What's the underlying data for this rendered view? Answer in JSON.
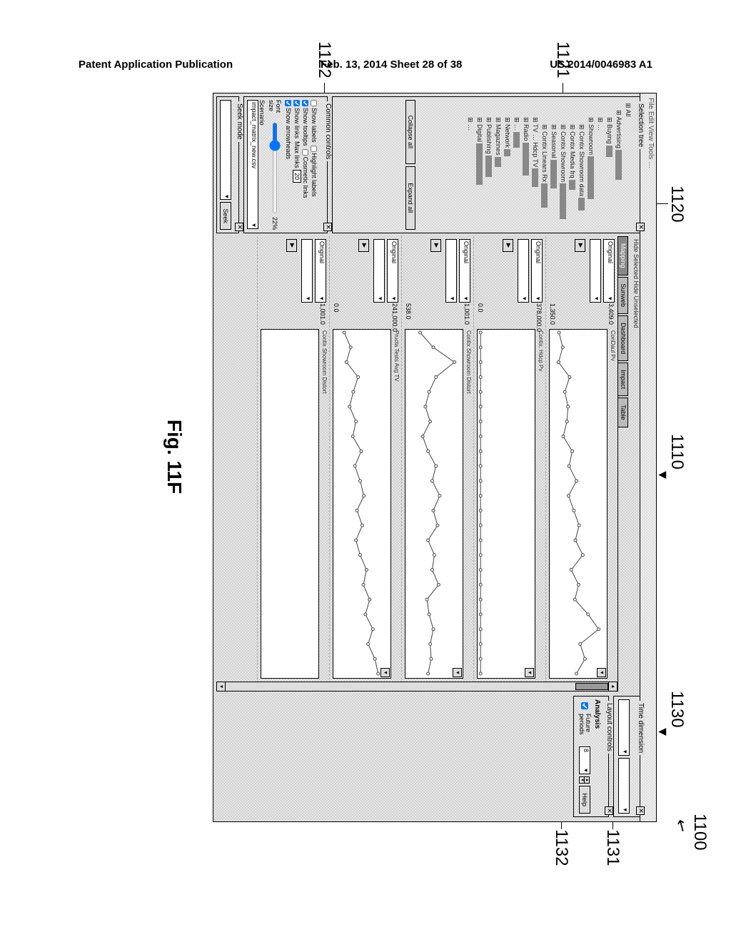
{
  "header": {
    "left": "Patent Application Publication",
    "center": "Feb. 13, 2014  Sheet 28 of 38",
    "right": "US 2014/0046983 A1"
  },
  "figure_label": "Fig. 11F",
  "callouts": {
    "c1100": "1100",
    "c1110": "1110",
    "c1120": "1120",
    "c1121": "1121",
    "c1122": "1122",
    "c1130": "1130",
    "c1131": "1131",
    "c1132": "1132"
  },
  "menubar": "File  Edit  View  Tools  …",
  "selection_tree": {
    "title": "Selection tree",
    "items": [
      {
        "indent": 0,
        "label": "All",
        "bar": 0
      },
      {
        "indent": 1,
        "label": "Advertising",
        "bar": 42
      },
      {
        "indent": 2,
        "label": "Buying",
        "bar": 16
      },
      {
        "indent": 2,
        "label": "…",
        "bar": 0
      },
      {
        "indent": 2,
        "label": "Showroom",
        "bar": 60
      },
      {
        "indent": 3,
        "label": "Contix Showroom data",
        "bar": 18
      },
      {
        "indent": 3,
        "label": "Contix Media frq",
        "bar": 14
      },
      {
        "indent": 3,
        "label": "Contix Showroom",
        "bar": 50
      },
      {
        "indent": 3,
        "label": "Seasonal",
        "bar": 40
      },
      {
        "indent": 3,
        "label": "Contix Linears Rx",
        "bar": 34
      },
      {
        "indent": 2,
        "label": "TV  …  Hdcp TV",
        "bar": 26
      },
      {
        "indent": 2,
        "label": "Radio",
        "bar": 46
      },
      {
        "indent": 2,
        "label": "…",
        "bar": 22
      },
      {
        "indent": 2,
        "label": "Network",
        "bar": 10
      },
      {
        "indent": 2,
        "label": "Magazines",
        "bar": 14
      },
      {
        "indent": 2,
        "label": "Publishing",
        "bar": 30
      },
      {
        "indent": 2,
        "label": "Digital",
        "bar": 58
      },
      {
        "indent": 2,
        "label": "…",
        "bar": 0
      }
    ],
    "collapse": "Collapse all",
    "expand": "Expand all"
  },
  "common_controls": {
    "title": "Common controls",
    "show_labels": "Show labels",
    "highlight_labels": "Highlight labels",
    "show_tooltips": "Show tooltips",
    "cosmetic_links": "Cosmetic links",
    "show_links": "Show links",
    "max_links_label": "Max links",
    "max_links_val": "20",
    "show_arrowheads": "Show arrowheads",
    "font_size_label": "Font size",
    "font_size_val": "22%",
    "scenario_label": "Scenario",
    "scenario_val": "impact_matrix_new.csv"
  },
  "seek": {
    "title": "Seek mode",
    "btn": "Seek"
  },
  "main_toolbar": "Hide Selected     Hide Unselected",
  "tabs": [
    "Mapping",
    "Sunweb",
    "Dashboard",
    "Impact",
    "Table"
  ],
  "charts": [
    {
      "title": "ConDaul Pv",
      "ymax": "3,409.0",
      "ymin": "1,350.0",
      "ctrl": "Original",
      "series": [
        15,
        22,
        14,
        35,
        26,
        32,
        30,
        23,
        40,
        34,
        48,
        33,
        43,
        53,
        46,
        60,
        38,
        52,
        45,
        70,
        90,
        55,
        64,
        48
      ],
      "yscale": 100
    },
    {
      "title": "Contix. Hdcp Pv",
      "ymax": "378,000.0",
      "ymin": "0.0",
      "ctrl": "Original",
      "series": [
        3,
        3,
        3,
        3,
        3,
        3,
        3,
        3,
        3,
        3,
        3,
        3,
        3,
        3,
        3,
        3,
        3,
        3,
        3,
        3,
        3,
        3,
        3,
        3
      ],
      "yscale": 100
    },
    {
      "title": "Contix Showroom Distort",
      "ymax": "1,001.0",
      "ymin": "538.0",
      "ctrl": "Original",
      "series": [
        25,
        50,
        90,
        55,
        42,
        35,
        44,
        30,
        40,
        55,
        48,
        62,
        50,
        58,
        40,
        52,
        48,
        60,
        38,
        42,
        50,
        44,
        46,
        40
      ],
      "yscale": 100
    },
    {
      "title": "Pructa Tests  Avg TV",
      "ymax": "241,000.0",
      "ymin": "0.0",
      "ctrl": "Original",
      "series": [
        18,
        30,
        22,
        44,
        35,
        28,
        40,
        34,
        50,
        38,
        48,
        55,
        42,
        52,
        40,
        48,
        60,
        54,
        66,
        58,
        72,
        63,
        76,
        82
      ],
      "yscale": 100
    },
    {
      "title": "Contix Showroom Distort",
      "ymax": "1,001.0",
      "ymin": "",
      "ctrl": "Original",
      "series": [],
      "yscale": 100
    }
  ],
  "time_dimension": {
    "title": "Time dimension"
  },
  "layout_controls": {
    "title": "Layout controls",
    "analysis": "Analysis",
    "future_periods": "Future periods",
    "future_val": "8",
    "help": "Help"
  }
}
